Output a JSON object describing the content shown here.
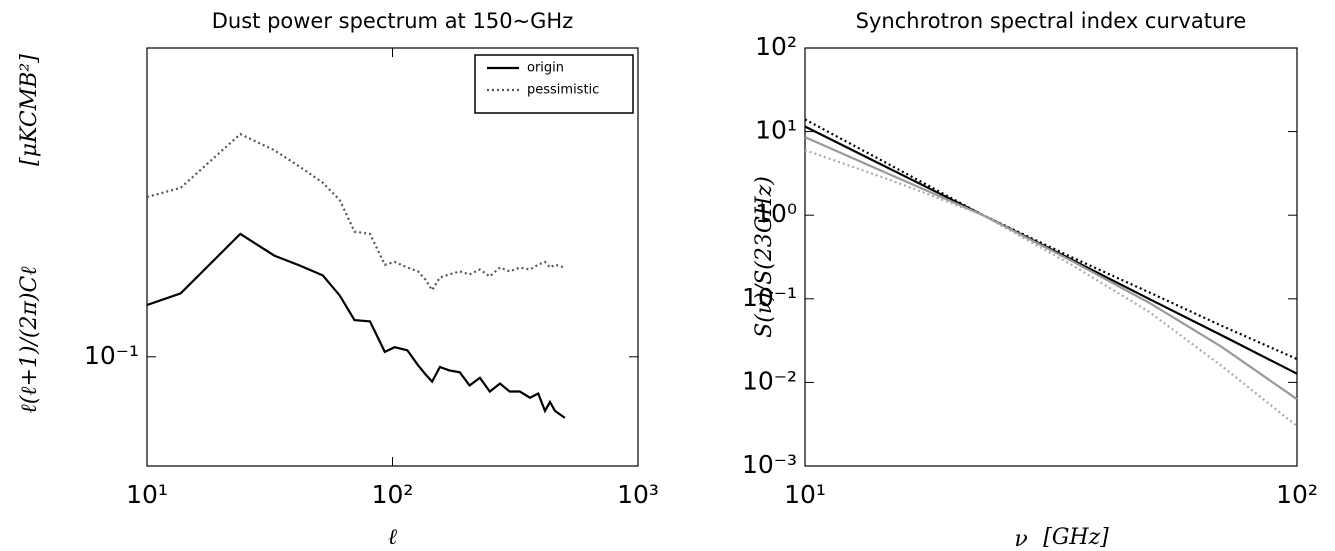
{
  "chart_data": [
    {
      "type": "line",
      "title": "Dust power spectrum at 150~GHz",
      "xlabel": "ℓ",
      "ylabel": "ℓ(ℓ+1)/(2π)Cℓ",
      "yunit": "[μKCMB²]",
      "log_x": true,
      "log_y": true,
      "legend": "upper-right",
      "xlim": [
        10,
        1000
      ],
      "ylim": [
        0.0515,
        0.653
      ],
      "xticks": [
        {
          "value": 10,
          "label": "10¹"
        },
        {
          "value": 100,
          "label": "10²"
        },
        {
          "value": 1000,
          "label": "10³"
        }
      ],
      "yticks": [
        {
          "value": 0.1,
          "label": "10⁻¹"
        }
      ],
      "x": [
        10,
        13.7,
        24,
        33,
        42,
        52,
        61,
        70,
        81,
        93,
        102,
        115,
        127,
        136,
        145,
        156,
        171,
        188,
        206,
        227,
        249,
        274,
        300,
        330,
        363,
        392,
        418,
        438,
        459,
        504
      ],
      "series": [
        {
          "name": "origin",
          "color": "#000000",
          "style": "solid",
          "values": [
            0.137,
            0.147,
            0.211,
            0.185,
            0.174,
            0.164,
            0.145,
            0.125,
            0.124,
            0.103,
            0.106,
            0.104,
            0.095,
            0.09,
            0.086,
            0.094,
            0.092,
            0.091,
            0.084,
            0.088,
            0.081,
            0.085,
            0.081,
            0.081,
            0.078,
            0.08,
            0.072,
            0.076,
            0.072,
            0.069
          ]
        },
        {
          "name": "pessimistic",
          "color": "#555555",
          "style": "dotted",
          "values": [
            0.264,
            0.279,
            0.387,
            0.351,
            0.317,
            0.288,
            0.259,
            0.214,
            0.211,
            0.175,
            0.178,
            0.172,
            0.168,
            0.16,
            0.15,
            0.162,
            0.165,
            0.168,
            0.165,
            0.17,
            0.163,
            0.172,
            0.168,
            0.172,
            0.17,
            0.175,
            0.178,
            0.172,
            0.175,
            0.172
          ]
        }
      ]
    },
    {
      "type": "line",
      "title": "Synchrotron spectral index curvature",
      "xlabel": "ν",
      "xunit": "[GHz]",
      "ylabel": "S(ν)/S(23GHz)",
      "log_x": true,
      "log_y": true,
      "xlim": [
        10,
        100
      ],
      "ylim": [
        0.001,
        100
      ],
      "xticks": [
        {
          "value": 10,
          "label": "10¹"
        },
        {
          "value": 100,
          "label": "10²"
        }
      ],
      "yticks": [
        {
          "value": 0.001,
          "label": "10⁻³"
        },
        {
          "value": 0.01,
          "label": "10⁻²"
        },
        {
          "value": 0.1,
          "label": "10⁻¹"
        },
        {
          "value": 1,
          "label": "10⁰"
        },
        {
          "value": 10,
          "label": "10¹"
        },
        {
          "value": 100,
          "label": "10²"
        }
      ],
      "x": [
        10,
        15,
        23,
        35,
        50,
        70,
        100
      ],
      "series": [
        {
          "color": "#000000",
          "style": "dotted",
          "values": [
            14,
            3.9,
            1.0,
            0.31,
            0.12,
            0.048,
            0.019
          ]
        },
        {
          "color": "#000000",
          "style": "solid",
          "values": [
            11.5,
            3.5,
            1.0,
            0.29,
            0.1,
            0.037,
            0.0127
          ]
        },
        {
          "color": "#999999",
          "style": "solid",
          "values": [
            8.6,
            3.0,
            1.0,
            0.28,
            0.09,
            0.027,
            0.0063
          ]
        },
        {
          "color": "#aaaaaa",
          "style": "dotted",
          "values": [
            6.0,
            2.6,
            1.0,
            0.25,
            0.07,
            0.016,
            0.003
          ]
        }
      ]
    }
  ]
}
